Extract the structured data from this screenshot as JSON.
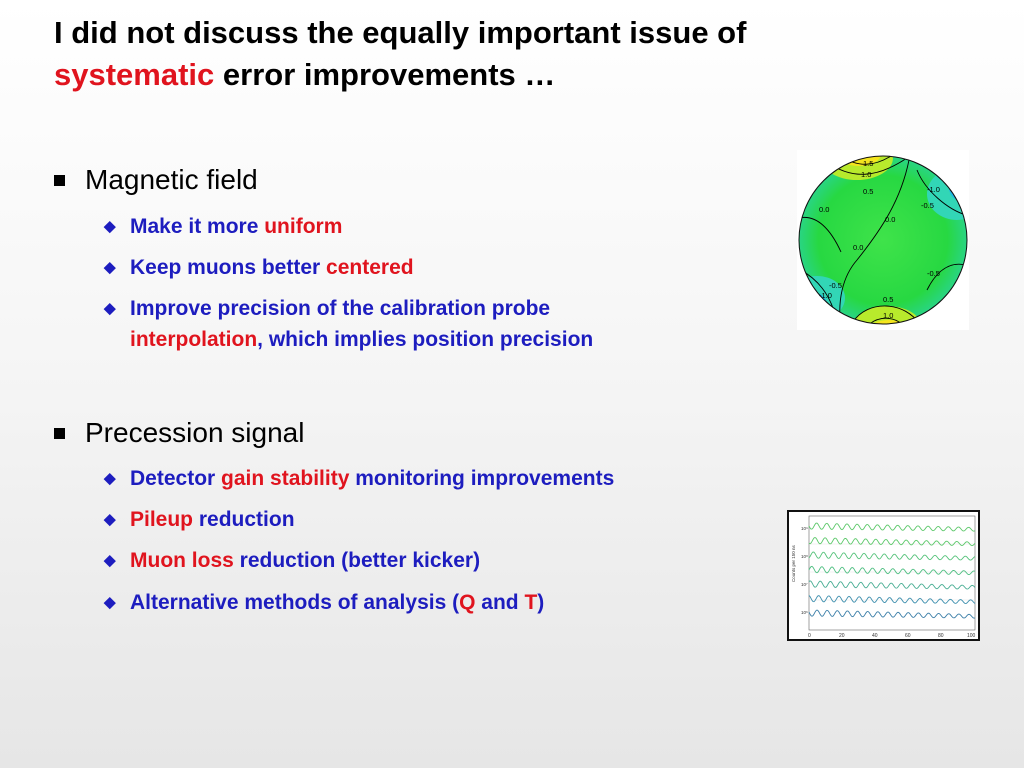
{
  "title": {
    "line1": "I did not discuss the equally important issue of",
    "red": "systematic",
    "rest": " error improvements …"
  },
  "sections": {
    "magnetic": {
      "heading": "Magnetic field",
      "b1_pre": "Make it more ",
      "b1_red": "uniform",
      "b2_pre": "Keep muons better ",
      "b2_red": "centered",
      "b3_pre": "Improve precision of the calibration probe",
      "b3_red": "interpolation",
      "b3_post": ", which implies position precision"
    },
    "precession": {
      "heading": "Precession signal",
      "b1_pre": "Detector ",
      "b1_red": "gain stability",
      "b1_post": " monitoring improvements",
      "b2_red": "Pileup",
      "b2_post": " reduction",
      "b3_red": "Muon loss",
      "b3_post": " reduction (better kicker)",
      "b4_pre": "Alternative methods of analysis (",
      "b4_q": "Q",
      "b4_and": " and ",
      "b4_t": "T",
      "b4_post": ")"
    }
  },
  "field_map": {
    "labels": [
      "1.5",
      "1.0",
      "0.5",
      "-1.0",
      "-0.5",
      "0.0",
      "0.0",
      "0.0",
      "-0.5",
      "-1.0",
      "0.5",
      "1.0",
      "-0.5"
    ]
  },
  "wiggle_plot": {
    "ylabel": "Counts per 150 ns",
    "yticks": [
      "10⁹",
      "10⁸",
      "10⁷",
      "10⁶"
    ],
    "xticks": [
      "0",
      "20",
      "40",
      "60",
      "80",
      "100"
    ]
  },
  "colors": {
    "red": "#e0141e",
    "blue": "#1d1dbf"
  }
}
